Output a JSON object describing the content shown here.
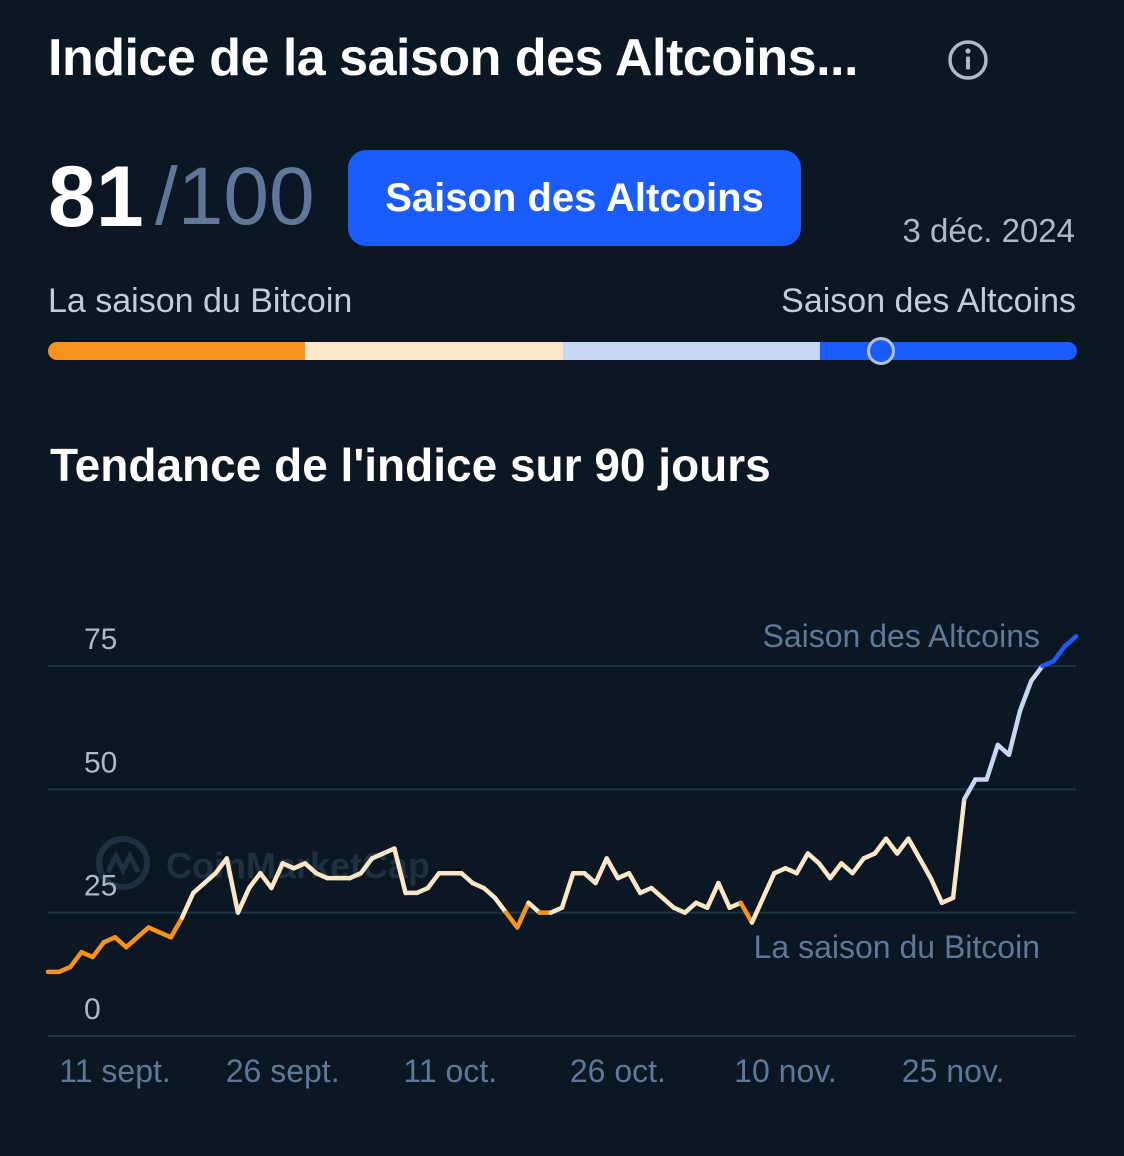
{
  "header": {
    "title": "Indice de la saison des Altcoins...",
    "info_icon": "info-circle-icon"
  },
  "index": {
    "value": "81",
    "max": "/100",
    "badge": "Saison des Altcoins",
    "date": "3 déc. 2024",
    "scale_left_label": "La saison du Bitcoin",
    "scale_right_label": "Saison des Altcoins",
    "marker_value": 81
  },
  "colors": {
    "background": "#0b1722",
    "bitcoin_season": "#f7931a",
    "neutral_low": "#fbe6c8",
    "neutral_high": "#c6d6f5",
    "altcoin_season": "#1a5cff",
    "grid": "#1e3446"
  },
  "chart_data": {
    "type": "line",
    "title": "Tendance de l'indice sur 90 jours",
    "watermark": "CoinMarketCap",
    "xlabel": "",
    "ylabel": "",
    "ylim": [
      0,
      85
    ],
    "y_ticks": [
      "0",
      "25",
      "50",
      "75"
    ],
    "y_tick_values": [
      0,
      25,
      50,
      75
    ],
    "x_tick_labels": [
      "11 sept.",
      "26 sept.",
      "11 oct.",
      "26 oct.",
      "10 nov.",
      "25 nov."
    ],
    "x_tick_index": [
      6,
      21,
      36,
      51,
      66,
      81
    ],
    "zone_labels": {
      "upper": {
        "text": "Saison des Altcoins",
        "value": 75
      },
      "lower": {
        "text": "La saison du Bitcoin",
        "value": 25
      }
    },
    "color_thresholds": {
      "bitcoin_season_max": 25,
      "altcoin_season_min": 75
    },
    "grid": true,
    "series": [
      {
        "values": [
          13,
          13,
          14,
          17,
          16,
          19,
          20,
          18,
          20,
          22,
          21,
          20,
          24,
          29,
          31,
          33,
          36,
          25,
          30,
          33,
          30,
          35,
          34,
          35,
          33,
          32,
          32,
          32,
          33,
          36,
          37,
          38,
          29,
          29,
          30,
          33,
          33,
          33,
          31,
          30,
          28,
          25,
          22,
          27,
          25,
          25,
          26,
          33,
          33,
          31,
          36,
          32,
          33,
          29,
          30,
          28,
          26,
          25,
          27,
          26,
          31,
          26,
          27,
          23,
          28,
          33,
          34,
          33,
          37,
          35,
          32,
          35,
          33,
          36,
          37,
          40,
          37,
          40,
          36,
          32,
          27,
          28,
          48,
          52,
          52,
          59,
          57,
          66,
          72,
          75,
          76,
          79,
          81
        ]
      }
    ]
  }
}
